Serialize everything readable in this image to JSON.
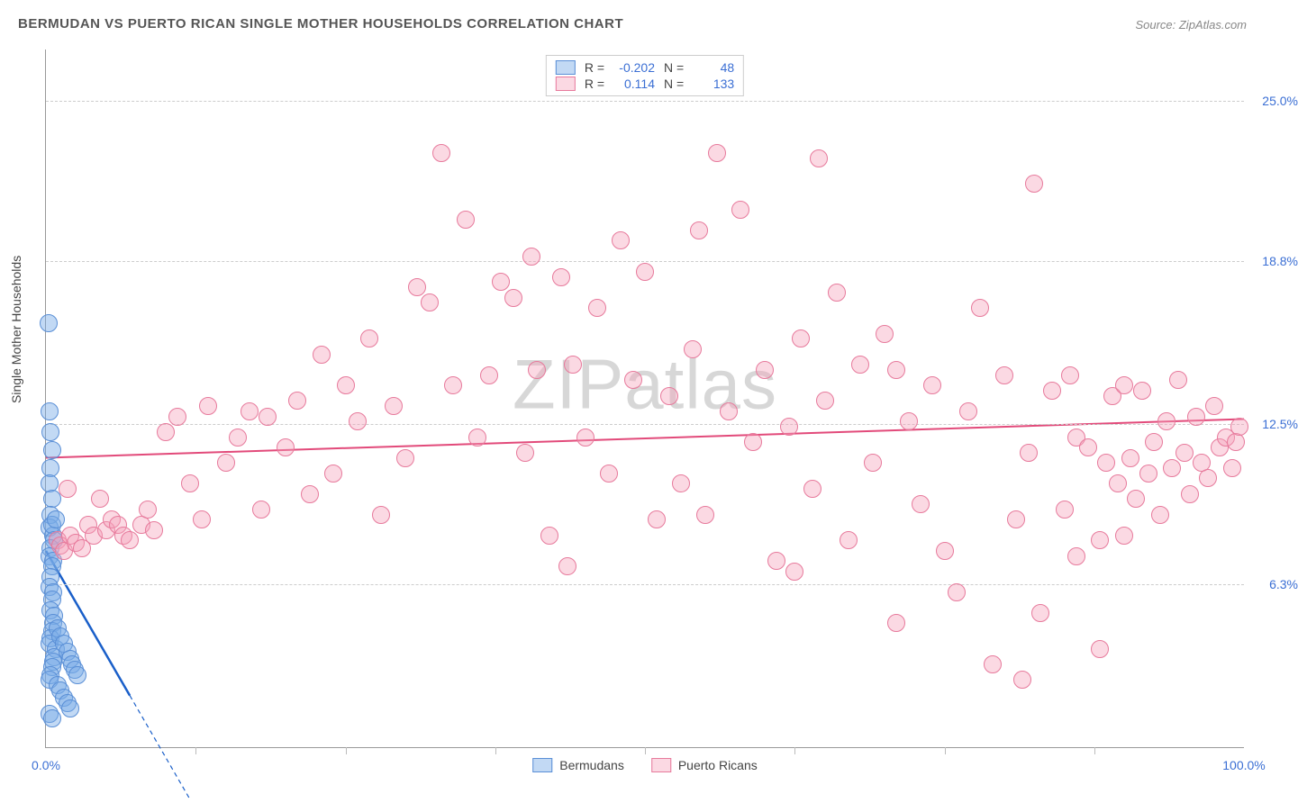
{
  "title": "BERMUDAN VS PUERTO RICAN SINGLE MOTHER HOUSEHOLDS CORRELATION CHART",
  "source": "Source: ZipAtlas.com",
  "y_axis_title": "Single Mother Households",
  "watermark": "ZIPatlas",
  "chart": {
    "type": "scatter",
    "background_color": "#ffffff",
    "grid_color": "#cccccc",
    "axis_color": "#999999",
    "xlim": [
      0,
      100
    ],
    "ylim": [
      0,
      27
    ],
    "x_ticks": [
      0,
      100
    ],
    "x_tick_labels": [
      "0.0%",
      "100.0%"
    ],
    "x_minor_ticks": [
      12.5,
      25,
      37.5,
      50,
      62.5,
      75,
      87.5
    ],
    "y_ticks": [
      6.3,
      12.5,
      18.8,
      25.0
    ],
    "y_tick_labels": [
      "6.3%",
      "12.5%",
      "18.8%",
      "25.0%"
    ],
    "y_tick_color": "#3b6fd4",
    "x_tick_color": "#3b6fd4",
    "marker_radius": 10,
    "marker_border_width": 1.2,
    "series": [
      {
        "name": "Bermudans",
        "color_fill": "rgba(120,170,230,0.45)",
        "color_border": "#5a8fd6",
        "R": "-0.202",
        "N": "48",
        "trend": {
          "x1": 0,
          "y1": 7.6,
          "x2": 7,
          "y2": 2.0,
          "color": "#1a5fc9",
          "width": 2.5,
          "dash_extend_to_x": 12
        },
        "points": [
          [
            0.2,
            16.4
          ],
          [
            0.3,
            13.0
          ],
          [
            0.4,
            12.2
          ],
          [
            0.5,
            11.5
          ],
          [
            0.4,
            10.8
          ],
          [
            0.3,
            10.2
          ],
          [
            0.5,
            9.6
          ],
          [
            0.4,
            9.0
          ],
          [
            0.3,
            8.5
          ],
          [
            0.6,
            8.2
          ],
          [
            0.5,
            8.6
          ],
          [
            0.7,
            8.0
          ],
          [
            0.4,
            7.7
          ],
          [
            0.3,
            7.4
          ],
          [
            0.6,
            7.2
          ],
          [
            0.5,
            7.0
          ],
          [
            0.4,
            6.6
          ],
          [
            0.3,
            6.2
          ],
          [
            0.6,
            6.0
          ],
          [
            0.5,
            5.7
          ],
          [
            0.4,
            5.3
          ],
          [
            0.7,
            5.1
          ],
          [
            0.6,
            4.8
          ],
          [
            0.5,
            4.5
          ],
          [
            0.4,
            4.2
          ],
          [
            0.3,
            4.0
          ],
          [
            0.8,
            3.8
          ],
          [
            0.7,
            3.5
          ],
          [
            0.6,
            3.3
          ],
          [
            0.5,
            3.1
          ],
          [
            0.4,
            2.8
          ],
          [
            0.3,
            2.6
          ],
          [
            1.0,
            4.6
          ],
          [
            1.2,
            4.3
          ],
          [
            1.5,
            4.0
          ],
          [
            1.8,
            3.7
          ],
          [
            2.0,
            3.4
          ],
          [
            2.2,
            3.2
          ],
          [
            2.4,
            3.0
          ],
          [
            2.6,
            2.8
          ],
          [
            1.0,
            2.4
          ],
          [
            1.2,
            2.2
          ],
          [
            1.5,
            1.9
          ],
          [
            1.8,
            1.7
          ],
          [
            2.0,
            1.5
          ],
          [
            0.3,
            1.3
          ],
          [
            0.5,
            1.1
          ],
          [
            0.8,
            8.8
          ]
        ]
      },
      {
        "name": "Puerto Ricans",
        "color_fill": "rgba(245,160,185,0.40)",
        "color_border": "#e77a9c",
        "R": "0.114",
        "N": "133",
        "trend": {
          "x1": 0,
          "y1": 11.2,
          "x2": 100,
          "y2": 12.7,
          "color": "#e24a7a",
          "width": 2,
          "dash_extend_to_x": 100
        },
        "points": [
          [
            1.0,
            8.0
          ],
          [
            1.2,
            7.8
          ],
          [
            1.5,
            7.6
          ],
          [
            1.8,
            10.0
          ],
          [
            2.0,
            8.2
          ],
          [
            2.5,
            7.9
          ],
          [
            3.0,
            7.7
          ],
          [
            3.5,
            8.6
          ],
          [
            4.0,
            8.2
          ],
          [
            4.5,
            9.6
          ],
          [
            5.0,
            8.4
          ],
          [
            5.5,
            8.8
          ],
          [
            6.0,
            8.6
          ],
          [
            6.5,
            8.2
          ],
          [
            7.0,
            8.0
          ],
          [
            8.0,
            8.6
          ],
          [
            8.5,
            9.2
          ],
          [
            9.0,
            8.4
          ],
          [
            10.0,
            12.2
          ],
          [
            11.0,
            12.8
          ],
          [
            12.0,
            10.2
          ],
          [
            13.0,
            8.8
          ],
          [
            13.5,
            13.2
          ],
          [
            15.0,
            11.0
          ],
          [
            16.0,
            12.0
          ],
          [
            17.0,
            13.0
          ],
          [
            18.0,
            9.2
          ],
          [
            18.5,
            12.8
          ],
          [
            20.0,
            11.6
          ],
          [
            21.0,
            13.4
          ],
          [
            22.0,
            9.8
          ],
          [
            23.0,
            15.2
          ],
          [
            24.0,
            10.6
          ],
          [
            25.0,
            14.0
          ],
          [
            26.0,
            12.6
          ],
          [
            27.0,
            15.8
          ],
          [
            28.0,
            9.0
          ],
          [
            29.0,
            13.2
          ],
          [
            30.0,
            11.2
          ],
          [
            31.0,
            17.8
          ],
          [
            32.0,
            17.2
          ],
          [
            33.0,
            23.0
          ],
          [
            34.0,
            14.0
          ],
          [
            35.0,
            20.4
          ],
          [
            36.0,
            12.0
          ],
          [
            37.0,
            14.4
          ],
          [
            38.0,
            18.0
          ],
          [
            39.0,
            17.4
          ],
          [
            40.0,
            11.4
          ],
          [
            40.5,
            19.0
          ],
          [
            41.0,
            14.6
          ],
          [
            42.0,
            8.2
          ],
          [
            43.0,
            18.2
          ],
          [
            43.5,
            7.0
          ],
          [
            44.0,
            14.8
          ],
          [
            45.0,
            12.0
          ],
          [
            46.0,
            17.0
          ],
          [
            47.0,
            10.6
          ],
          [
            48.0,
            19.6
          ],
          [
            49.0,
            14.2
          ],
          [
            50.0,
            18.4
          ],
          [
            51.0,
            8.8
          ],
          [
            52.0,
            13.6
          ],
          [
            53.0,
            10.2
          ],
          [
            54.0,
            15.4
          ],
          [
            54.5,
            20.0
          ],
          [
            55.0,
            9.0
          ],
          [
            56.0,
            23.0
          ],
          [
            57.0,
            13.0
          ],
          [
            58.0,
            20.8
          ],
          [
            59.0,
            11.8
          ],
          [
            60.0,
            14.6
          ],
          [
            61.0,
            7.2
          ],
          [
            62.0,
            12.4
          ],
          [
            62.5,
            6.8
          ],
          [
            63.0,
            15.8
          ],
          [
            64.0,
            10.0
          ],
          [
            64.5,
            22.8
          ],
          [
            65.0,
            13.4
          ],
          [
            66.0,
            17.6
          ],
          [
            67.0,
            8.0
          ],
          [
            68.0,
            14.8
          ],
          [
            69.0,
            11.0
          ],
          [
            70.0,
            16.0
          ],
          [
            71.0,
            4.8
          ],
          [
            72.0,
            12.6
          ],
          [
            73.0,
            9.4
          ],
          [
            74.0,
            14.0
          ],
          [
            75.0,
            7.6
          ],
          [
            76.0,
            6.0
          ],
          [
            77.0,
            13.0
          ],
          [
            78.0,
            17.0
          ],
          [
            79.0,
            3.2
          ],
          [
            80.0,
            14.4
          ],
          [
            81.0,
            8.8
          ],
          [
            81.5,
            2.6
          ],
          [
            82.0,
            11.4
          ],
          [
            82.5,
            21.8
          ],
          [
            83.0,
            5.2
          ],
          [
            84.0,
            13.8
          ],
          [
            85.0,
            9.2
          ],
          [
            85.5,
            14.4
          ],
          [
            86.0,
            12.0
          ],
          [
            87.0,
            11.6
          ],
          [
            88.0,
            8.0
          ],
          [
            88.5,
            11.0
          ],
          [
            89.0,
            13.6
          ],
          [
            89.5,
            10.2
          ],
          [
            90.0,
            14.0
          ],
          [
            90.5,
            11.2
          ],
          [
            91.0,
            9.6
          ],
          [
            91.5,
            13.8
          ],
          [
            92.0,
            10.6
          ],
          [
            92.5,
            11.8
          ],
          [
            93.0,
            9.0
          ],
          [
            93.5,
            12.6
          ],
          [
            94.0,
            10.8
          ],
          [
            94.5,
            14.2
          ],
          [
            95.0,
            11.4
          ],
          [
            95.5,
            9.8
          ],
          [
            96.0,
            12.8
          ],
          [
            96.5,
            11.0
          ],
          [
            97.0,
            10.4
          ],
          [
            97.5,
            13.2
          ],
          [
            98.0,
            11.6
          ],
          [
            98.5,
            12.0
          ],
          [
            99.0,
            10.8
          ],
          [
            99.3,
            11.8
          ],
          [
            99.6,
            12.4
          ],
          [
            88.0,
            3.8
          ],
          [
            90.0,
            8.2
          ],
          [
            86.0,
            7.4
          ],
          [
            71.0,
            14.6
          ]
        ]
      }
    ]
  }
}
